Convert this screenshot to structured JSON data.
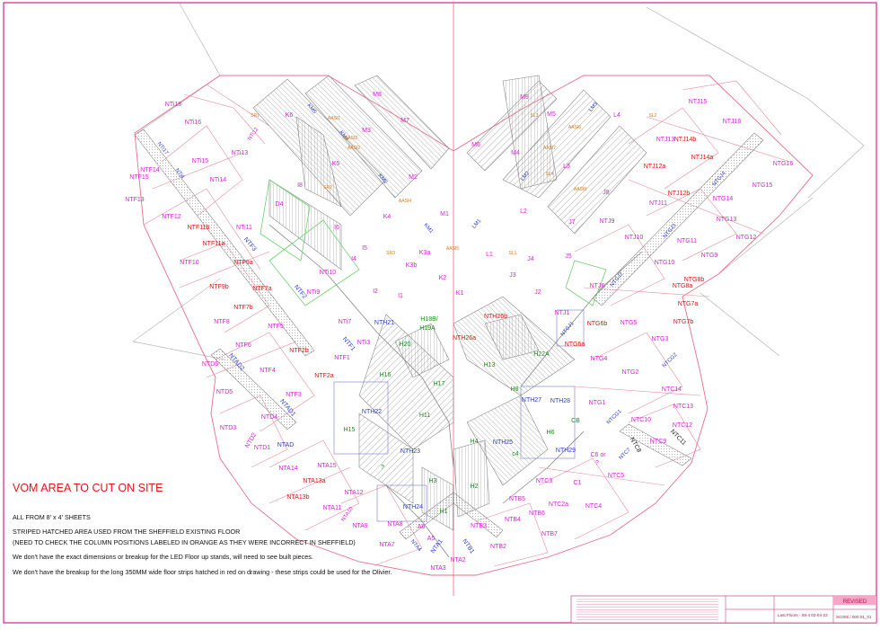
{
  "notes": {
    "headline": "VOM AREA TO CUT ON SITE",
    "lines": [
      "ALL FROM 8' x 4' SHEETS",
      "STRIPED HATCHED AREA USED FROM THE SHEFFIELD EXISTING FLOOR",
      "(NEED TO CHECK THE COLUMN POSITIONS LABELED IN ORANGE AS THEY WERE INCORRECT IN SHEFFIELD)",
      "We don't have the exact dimensions or breakup for the LED Floor up stands, will need to see built pieces.",
      "We don't have the breakup for the long 350MM wide floor strips hatched in red on drawing - these strips could be used for the Olivier."
    ]
  },
  "colors": {
    "magenta": "#d81ed8",
    "red": "#e01010",
    "blue": "#2a3fc8",
    "green": "#1e8c1e",
    "orange": "#e07a10",
    "black": "#222222",
    "outline": "#e86f8a"
  },
  "labels": [
    {
      "t": "NTi18",
      "c": "magenta"
    },
    {
      "t": "NTi16",
      "c": "magenta"
    },
    {
      "t": "NTi17",
      "c": "blue"
    },
    {
      "t": "NTi13",
      "c": "magenta"
    },
    {
      "t": "NTi12",
      "c": "magenta"
    },
    {
      "t": "NTi15",
      "c": "magenta"
    },
    {
      "t": "NTi4",
      "c": "blue"
    },
    {
      "t": "NTi14",
      "c": "magenta"
    },
    {
      "t": "NTF15",
      "c": "magenta"
    },
    {
      "t": "NTF14",
      "c": "magenta"
    },
    {
      "t": "NTF13",
      "c": "magenta"
    },
    {
      "t": "NTF12",
      "c": "magenta"
    },
    {
      "t": "NTi11",
      "c": "magenta"
    },
    {
      "t": "NTF11b",
      "c": "red"
    },
    {
      "t": "NTF11a",
      "c": "red"
    },
    {
      "t": "NTF3",
      "c": "blue"
    },
    {
      "t": "NTF10",
      "c": "magenta"
    },
    {
      "t": "NTF9a",
      "c": "red"
    },
    {
      "t": "NTF9b",
      "c": "red"
    },
    {
      "t": "NTF7a",
      "c": "red"
    },
    {
      "t": "NTF2",
      "c": "blue"
    },
    {
      "t": "NTF7b",
      "c": "red"
    },
    {
      "t": "NTi9",
      "c": "magenta"
    },
    {
      "t": "NTi10",
      "c": "magenta"
    },
    {
      "t": "NTF8",
      "c": "magenta"
    },
    {
      "t": "NTF5",
      "c": "magenta"
    },
    {
      "t": "NTi7",
      "c": "magenta"
    },
    {
      "t": "NTF6",
      "c": "magenta"
    },
    {
      "t": "NTi3",
      "c": "magenta"
    },
    {
      "t": "NTF1",
      "c": "blue"
    },
    {
      "t": "NTF2b",
      "c": "red"
    },
    {
      "t": "NTF1",
      "c": "magenta"
    },
    {
      "t": "NTAD2",
      "c": "blue"
    },
    {
      "t": "NTD6",
      "c": "magenta"
    },
    {
      "t": "NTF4",
      "c": "magenta"
    },
    {
      "t": "NTF2a",
      "c": "red"
    },
    {
      "t": "NTF3",
      "c": "magenta"
    },
    {
      "t": "NTD5",
      "c": "magenta"
    },
    {
      "t": "NTAD1",
      "c": "blue"
    },
    {
      "t": "NTD4",
      "c": "magenta"
    },
    {
      "t": "NTD3",
      "c": "magenta"
    },
    {
      "t": "NTD2",
      "c": "magenta"
    },
    {
      "t": "NTD1",
      "c": "magenta"
    },
    {
      "t": "NTAD",
      "c": "blue"
    },
    {
      "t": "NTA14",
      "c": "magenta"
    },
    {
      "t": "NTA15",
      "c": "magenta"
    },
    {
      "t": "NTA13a",
      "c": "red"
    },
    {
      "t": "NTA13b",
      "c": "red"
    },
    {
      "t": "NTA12",
      "c": "magenta"
    },
    {
      "t": "NTA11",
      "c": "magenta"
    },
    {
      "t": "NTA10",
      "c": "magenta"
    },
    {
      "t": "NTA9",
      "c": "magenta"
    },
    {
      "t": "NTA8",
      "c": "magenta"
    },
    {
      "t": "NTA7",
      "c": "magenta"
    },
    {
      "t": "NTA4",
      "c": "blue"
    },
    {
      "t": "A6",
      "c": "magenta"
    },
    {
      "t": "A5",
      "c": "magenta"
    },
    {
      "t": "NTA1",
      "c": "blue"
    },
    {
      "t": "NTA2",
      "c": "magenta"
    },
    {
      "t": "NTA3",
      "c": "magenta"
    },
    {
      "t": "NTB1",
      "c": "blue"
    },
    {
      "t": "NTB2",
      "c": "magenta"
    },
    {
      "t": "NTB3",
      "c": "magenta"
    },
    {
      "t": "NTB4",
      "c": "magenta"
    },
    {
      "t": "NTB5",
      "c": "magenta"
    },
    {
      "t": "NTB6",
      "c": "magenta"
    },
    {
      "t": "NTB7",
      "c": "magenta"
    },
    {
      "t": "NTC2a",
      "c": "magenta"
    },
    {
      "t": "C1",
      "c": "magenta"
    },
    {
      "t": "NTC3",
      "c": "magenta"
    },
    {
      "t": "NTC4",
      "c": "magenta"
    },
    {
      "t": "NTC5",
      "c": "magenta"
    },
    {
      "t": "NTC7",
      "c": "blue"
    },
    {
      "t": "NTC9",
      "c": "magenta"
    },
    {
      "t": "NTC8",
      "c": "black"
    },
    {
      "t": "NTC10",
      "c": "magenta"
    },
    {
      "t": "NTC11",
      "c": "black"
    },
    {
      "t": "NTC12",
      "c": "magenta"
    },
    {
      "t": "NTC13",
      "c": "magenta"
    },
    {
      "t": "NTC14",
      "c": "magenta"
    },
    {
      "t": "NTCG1",
      "c": "blue"
    },
    {
      "t": "NTCG2",
      "c": "blue"
    },
    {
      "t": "NTG1",
      "c": "magenta"
    },
    {
      "t": "NTG2",
      "c": "magenta"
    },
    {
      "t": "NTG3",
      "c": "magenta"
    },
    {
      "t": "NTG4",
      "c": "magenta"
    },
    {
      "t": "NTG5",
      "c": "magenta"
    },
    {
      "t": "NTG6a",
      "c": "red"
    },
    {
      "t": "NTG6b",
      "c": "red"
    },
    {
      "t": "NTG7a",
      "c": "red"
    },
    {
      "t": "NTG7b",
      "c": "red"
    },
    {
      "t": "NTG8a",
      "c": "red"
    },
    {
      "t": "NTG8b",
      "c": "red"
    },
    {
      "t": "NTG9",
      "c": "magenta"
    },
    {
      "t": "NTG10",
      "c": "magenta"
    },
    {
      "t": "NTG11",
      "c": "magenta"
    },
    {
      "t": "NTG12",
      "c": "magenta"
    },
    {
      "t": "NTG13",
      "c": "magenta"
    },
    {
      "t": "NTG14",
      "c": "magenta"
    },
    {
      "t": "NTG15",
      "c": "magenta"
    },
    {
      "t": "NTG16",
      "c": "magenta"
    },
    {
      "t": "NTGJ1",
      "c": "blue"
    },
    {
      "t": "NTGJ2",
      "c": "blue"
    },
    {
      "t": "NTGJ3",
      "c": "blue"
    },
    {
      "t": "NTGJ4",
      "c": "blue"
    },
    {
      "t": "NTJ1",
      "c": "magenta"
    },
    {
      "t": "NTJ6",
      "c": "magenta"
    },
    {
      "t": "NTJ9",
      "c": "magenta"
    },
    {
      "t": "NTJ10",
      "c": "magenta"
    },
    {
      "t": "NTJ11",
      "c": "magenta"
    },
    {
      "t": "NTJ12a",
      "c": "red"
    },
    {
      "t": "NTJ12b",
      "c": "red"
    },
    {
      "t": "NTJ13",
      "c": "magenta"
    },
    {
      "t": "NTJ14a",
      "c": "red"
    },
    {
      "t": "NTJ14b",
      "c": "red"
    },
    {
      "t": "NTJ15",
      "c": "magenta"
    },
    {
      "t": "NTJ16",
      "c": "magenta"
    },
    {
      "t": "K6",
      "c": "magenta"
    },
    {
      "t": "K5",
      "c": "magenta"
    },
    {
      "t": "K4",
      "c": "magenta"
    },
    {
      "t": "K3a",
      "c": "magenta"
    },
    {
      "t": "K3b",
      "c": "magenta"
    },
    {
      "t": "K2",
      "c": "magenta"
    },
    {
      "t": "K1",
      "c": "magenta"
    },
    {
      "t": "KM5",
      "c": "blue"
    },
    {
      "t": "KM4",
      "c": "blue"
    },
    {
      "t": "KM2",
      "c": "blue"
    },
    {
      "t": "KM1",
      "c": "blue"
    },
    {
      "t": "M8",
      "c": "magenta"
    },
    {
      "t": "M7",
      "c": "magenta"
    },
    {
      "t": "M3",
      "c": "magenta"
    },
    {
      "t": "M2",
      "c": "magenta"
    },
    {
      "t": "M1",
      "c": "magenta"
    },
    {
      "t": "M9",
      "c": "magenta"
    },
    {
      "t": "M6",
      "c": "magenta"
    },
    {
      "t": "M5",
      "c": "magenta"
    },
    {
      "t": "M4",
      "c": "magenta"
    },
    {
      "t": "LM3",
      "c": "blue"
    },
    {
      "t": "LM2",
      "c": "blue"
    },
    {
      "t": "LM1",
      "c": "blue"
    },
    {
      "t": "L4",
      "c": "magenta"
    },
    {
      "t": "L3",
      "c": "magenta"
    },
    {
      "t": "L2",
      "c": "magenta"
    },
    {
      "t": "L1",
      "c": "magenta"
    },
    {
      "t": "J8",
      "c": "magenta"
    },
    {
      "t": "J7",
      "c": "magenta"
    },
    {
      "t": "J5",
      "c": "magenta"
    },
    {
      "t": "J4",
      "c": "magenta"
    },
    {
      "t": "J3",
      "c": "magenta"
    },
    {
      "t": "J2",
      "c": "magenta"
    },
    {
      "t": "I8",
      "c": "magenta"
    },
    {
      "t": "I6",
      "c": "magenta"
    },
    {
      "t": "I5",
      "c": "magenta"
    },
    {
      "t": "I4",
      "c": "magenta"
    },
    {
      "t": "I2",
      "c": "magenta"
    },
    {
      "t": "I1",
      "c": "magenta"
    },
    {
      "t": "D4",
      "c": "magenta"
    },
    {
      "t": "NTH21",
      "c": "blue"
    },
    {
      "t": "H18B/",
      "c": "green"
    },
    {
      "t": "H19A",
      "c": "green"
    },
    {
      "t": "H20",
      "c": "green"
    },
    {
      "t": "NTH26b",
      "c": "red"
    },
    {
      "t": "NTH26a",
      "c": "red"
    },
    {
      "t": "H16",
      "c": "green"
    },
    {
      "t": "H17",
      "c": "green"
    },
    {
      "t": "H13",
      "c": "green"
    },
    {
      "t": "H22A",
      "c": "green"
    },
    {
      "t": "H8",
      "c": "green"
    },
    {
      "t": "NTH22",
      "c": "blue"
    },
    {
      "t": "H11",
      "c": "green"
    },
    {
      "t": "NTH27",
      "c": "blue"
    },
    {
      "t": "NTH28",
      "c": "blue"
    },
    {
      "t": "H15",
      "c": "green"
    },
    {
      "t": "CB",
      "c": "green"
    },
    {
      "t": "H6",
      "c": "green"
    },
    {
      "t": "H4",
      "c": "green"
    },
    {
      "t": "NTH25",
      "c": "blue"
    },
    {
      "t": "NTH23",
      "c": "blue"
    },
    {
      "t": "NTH29",
      "c": "blue"
    },
    {
      "t": "c4",
      "c": "green"
    },
    {
      "t": "?",
      "c": "green"
    },
    {
      "t": "H3",
      "c": "green"
    },
    {
      "t": "H2",
      "c": "green"
    },
    {
      "t": "C6 or",
      "c": "magenta"
    },
    {
      "t": "?",
      "c": "magenta"
    },
    {
      "t": "NTH24",
      "c": "blue"
    },
    {
      "t": "H1",
      "c": "green"
    },
    {
      "t": "SR1",
      "c": "orange"
    },
    {
      "t": "AASI1",
      "c": "orange"
    },
    {
      "t": "AASI2",
      "c": "orange"
    },
    {
      "t": "AASI3",
      "c": "orange"
    },
    {
      "t": "SR2",
      "c": "orange"
    },
    {
      "t": "AASI4",
      "c": "orange"
    },
    {
      "t": "SR3",
      "c": "orange"
    },
    {
      "t": "AASI5",
      "c": "orange"
    },
    {
      "t": "AASI6",
      "c": "orange"
    },
    {
      "t": "AASI7",
      "c": "orange"
    },
    {
      "t": "AASI8",
      "c": "orange"
    },
    {
      "t": "SL1",
      "c": "orange"
    },
    {
      "t": "SL2",
      "c": "orange"
    },
    {
      "t": "SL3",
      "c": "orange"
    },
    {
      "t": "SL4",
      "c": "orange"
    }
  ],
  "title_block": {
    "revised_label": "REVISED",
    "cell_texts": [
      "Last Floors - 08-4 02-04-22",
      "SC005 / 000 01_01"
    ]
  }
}
